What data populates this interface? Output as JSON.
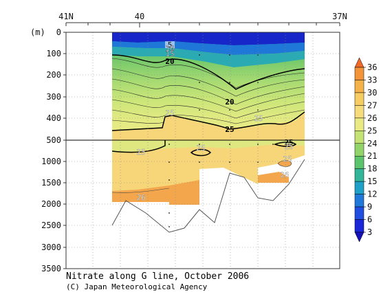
{
  "chart_data": {
    "type": "contour-section",
    "title": "Nitrate along G line, October 2006",
    "credit": "(C) Japan Meteorological Agency",
    "ylabel": "(m)",
    "x_top_labels": [
      "41N",
      "40",
      "37N"
    ],
    "y_ticks": [
      "0",
      "100",
      "200",
      "300",
      "400",
      "500",
      "1000",
      "1500",
      "2000",
      "2500",
      "3000",
      "3500"
    ],
    "colorbar": {
      "ticks": [
        "36",
        "33",
        "30",
        "27",
        "26",
        "25",
        "24",
        "21",
        "18",
        "15",
        "12",
        "9",
        "6",
        "3"
      ],
      "colors": [
        "#f06a2a",
        "#f3933a",
        "#f6b24a",
        "#f7cc63",
        "#f6dc7a",
        "#e9ea84",
        "#c4e374",
        "#92d36a",
        "#5dc46e",
        "#33b59a",
        "#1ea0c8",
        "#2078d8",
        "#1f4ee0",
        "#1a26d8",
        "#1510b8"
      ]
    },
    "contour_labels": [
      {
        "text": "5",
        "value": 5
      },
      {
        "text": "10",
        "value": 10
      },
      {
        "text": "15",
        "value": 15
      },
      {
        "text": "20",
        "value": 20
      },
      {
        "text": "20",
        "value": 20
      },
      {
        "text": "25",
        "value": 25
      },
      {
        "text": "25",
        "value": 25
      },
      {
        "text": "25",
        "value": 25
      },
      {
        "text": "25",
        "value": 25
      },
      {
        "text": "25",
        "value": 25
      },
      {
        "text": "25",
        "value": 25
      },
      {
        "text": "25",
        "value": 25
      },
      {
        "text": "25",
        "value": 25
      },
      {
        "text": "26",
        "value": 26
      },
      {
        "text": "26",
        "value": 26
      }
    ]
  }
}
